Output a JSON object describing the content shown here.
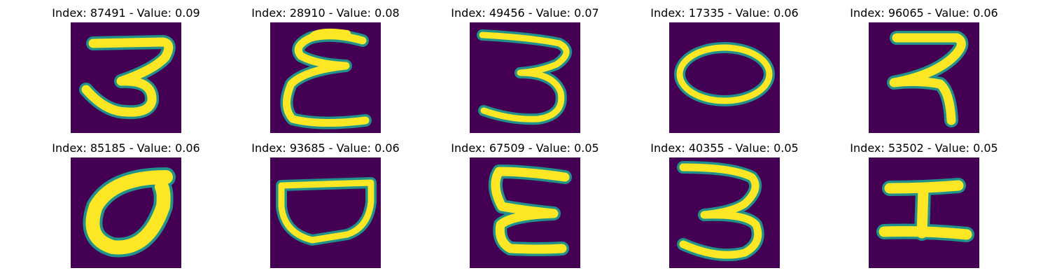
{
  "figure": {
    "colors": {
      "background": "#440154",
      "stroke": "#fde725",
      "edge": "#21918c"
    },
    "panels": [
      {
        "title": "Index: 87491 - Value: 0.09",
        "glyph": "3"
      },
      {
        "title": "Index: 28910 - Value: 0.08",
        "glyph": "ε"
      },
      {
        "title": "Index: 49456 - Value: 0.07",
        "glyph": "3"
      },
      {
        "title": "Index: 17335 - Value: 0.06",
        "glyph": "0"
      },
      {
        "title": "Index: 96065 - Value: 0.06",
        "glyph": "ন"
      },
      {
        "title": "Index: 85185 - Value: 0.06",
        "glyph": "σ"
      },
      {
        "title": "Index: 93685 - Value: 0.06",
        "glyph": "ט"
      },
      {
        "title": "Index: 67509 - Value: 0.05",
        "glyph": "ε"
      },
      {
        "title": "Index: 40355 - Value: 0.05",
        "glyph": "3"
      },
      {
        "title": "Index: 53502 - Value: 0.05",
        "glyph": "工"
      }
    ]
  }
}
